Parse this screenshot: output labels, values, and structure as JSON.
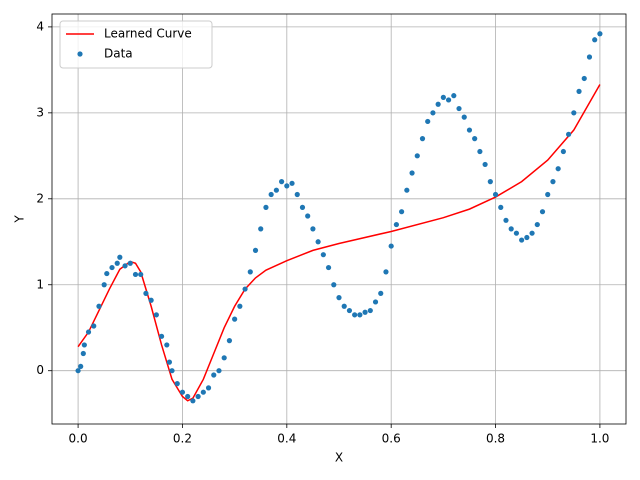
{
  "chart_data": {
    "type": "line",
    "xlabel": "X",
    "ylabel": "Y",
    "xlim": [
      -0.05,
      1.05
    ],
    "ylim": [
      -0.62,
      4.15
    ],
    "xticks": [
      {
        "value": 0,
        "label": "0.0"
      },
      {
        "value": 0.2,
        "label": "0.2"
      },
      {
        "value": 0.4,
        "label": "0.4"
      },
      {
        "value": 0.6,
        "label": "0.6"
      },
      {
        "value": 0.8,
        "label": "0.8"
      },
      {
        "value": 1,
        "label": "1.0"
      }
    ],
    "yticks": [
      0,
      1,
      2,
      3,
      4
    ],
    "grid": true,
    "legend": "upper left",
    "series": [
      {
        "name": "Learned Curve",
        "type": "line",
        "color": "#ff0000",
        "x": [
          0,
          0.02,
          0.04,
          0.06,
          0.08,
          0.1,
          0.11,
          0.12,
          0.14,
          0.16,
          0.18,
          0.2,
          0.21,
          0.22,
          0.24,
          0.26,
          0.28,
          0.3,
          0.32,
          0.34,
          0.36,
          0.4,
          0.45,
          0.5,
          0.6,
          0.7,
          0.75,
          0.8,
          0.85,
          0.9,
          0.95,
          1.0
        ],
        "values": [
          0.28,
          0.45,
          0.7,
          0.95,
          1.18,
          1.27,
          1.25,
          1.15,
          0.75,
          0.3,
          -0.1,
          -0.3,
          -0.35,
          -0.32,
          -0.1,
          0.2,
          0.5,
          0.75,
          0.95,
          1.08,
          1.17,
          1.28,
          1.4,
          1.48,
          1.62,
          1.78,
          1.88,
          2.02,
          2.2,
          2.45,
          2.8,
          3.33
        ]
      },
      {
        "name": "Data",
        "type": "scatter",
        "color": "#1f77b4",
        "x": [
          0,
          0.005,
          0.01,
          0.012,
          0.02,
          0.03,
          0.04,
          0.05,
          0.055,
          0.065,
          0.075,
          0.08,
          0.09,
          0.1,
          0.11,
          0.12,
          0.13,
          0.14,
          0.15,
          0.16,
          0.17,
          0.175,
          0.18,
          0.19,
          0.2,
          0.21,
          0.22,
          0.23,
          0.24,
          0.25,
          0.26,
          0.27,
          0.28,
          0.29,
          0.3,
          0.31,
          0.32,
          0.33,
          0.34,
          0.35,
          0.36,
          0.37,
          0.38,
          0.39,
          0.4,
          0.41,
          0.42,
          0.43,
          0.44,
          0.45,
          0.46,
          0.47,
          0.48,
          0.49,
          0.5,
          0.51,
          0.52,
          0.53,
          0.54,
          0.55,
          0.56,
          0.57,
          0.58,
          0.59,
          0.6,
          0.61,
          0.62,
          0.63,
          0.64,
          0.65,
          0.66,
          0.67,
          0.68,
          0.69,
          0.7,
          0.71,
          0.72,
          0.73,
          0.74,
          0.75,
          0.76,
          0.77,
          0.78,
          0.79,
          0.8,
          0.81,
          0.82,
          0.83,
          0.84,
          0.85,
          0.86,
          0.87,
          0.88,
          0.89,
          0.9,
          0.91,
          0.92,
          0.93,
          0.94,
          0.95,
          0.96,
          0.97,
          0.98,
          0.99,
          1.0
        ],
        "values": [
          0.0,
          0.05,
          0.2,
          0.3,
          0.45,
          0.52,
          0.75,
          1.0,
          1.13,
          1.2,
          1.25,
          1.32,
          1.22,
          1.25,
          1.12,
          1.12,
          0.9,
          0.82,
          0.65,
          0.4,
          0.3,
          0.1,
          0.0,
          -0.15,
          -0.25,
          -0.3,
          -0.35,
          -0.3,
          -0.25,
          -0.2,
          -0.05,
          0.0,
          0.15,
          0.35,
          0.6,
          0.75,
          0.95,
          1.15,
          1.4,
          1.65,
          1.9,
          2.05,
          2.1,
          2.2,
          2.15,
          2.18,
          2.05,
          1.9,
          1.8,
          1.65,
          1.5,
          1.35,
          1.2,
          1.0,
          0.85,
          0.75,
          0.7,
          0.65,
          0.65,
          0.68,
          0.7,
          0.8,
          0.9,
          1.15,
          1.45,
          1.7,
          1.85,
          2.1,
          2.3,
          2.5,
          2.7,
          2.9,
          3.0,
          3.1,
          3.18,
          3.15,
          3.2,
          3.05,
          2.95,
          2.8,
          2.7,
          2.55,
          2.4,
          2.2,
          2.05,
          1.9,
          1.75,
          1.65,
          1.6,
          1.52,
          1.55,
          1.6,
          1.7,
          1.85,
          2.05,
          2.2,
          2.35,
          2.55,
          2.75,
          3.0,
          3.25,
          3.4,
          3.65,
          3.85,
          3.92
        ]
      }
    ]
  }
}
